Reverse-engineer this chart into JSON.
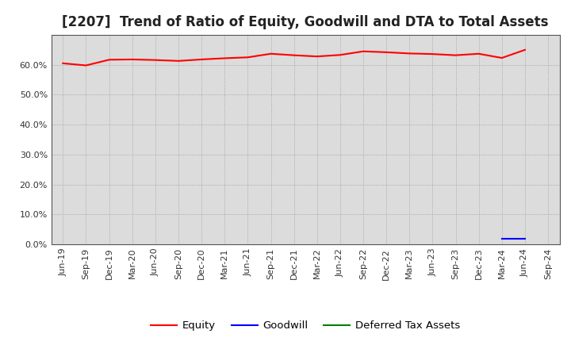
{
  "title": "[2207]  Trend of Ratio of Equity, Goodwill and DTA to Total Assets",
  "labels": [
    "Jun-19",
    "Sep-19",
    "Dec-19",
    "Mar-20",
    "Jun-20",
    "Sep-20",
    "Dec-20",
    "Mar-21",
    "Jun-21",
    "Sep-21",
    "Dec-21",
    "Mar-22",
    "Jun-22",
    "Sep-22",
    "Dec-22",
    "Mar-23",
    "Jun-23",
    "Sep-23",
    "Dec-23",
    "Mar-24",
    "Jun-24",
    "Sep-24"
  ],
  "equity": [
    60.5,
    59.8,
    61.7,
    61.8,
    61.6,
    61.3,
    61.8,
    62.2,
    62.5,
    63.7,
    63.2,
    62.8,
    63.3,
    64.5,
    64.2,
    63.8,
    63.6,
    63.2,
    63.7,
    62.3,
    65.0,
    null
  ],
  "goodwill": [
    null,
    null,
    null,
    null,
    null,
    null,
    null,
    null,
    null,
    null,
    null,
    null,
    null,
    null,
    null,
    null,
    null,
    null,
    null,
    1.8,
    1.8,
    null
  ],
  "dta": [
    null,
    null,
    null,
    null,
    null,
    null,
    null,
    null,
    null,
    null,
    null,
    null,
    null,
    null,
    null,
    null,
    null,
    null,
    null,
    null,
    null,
    null
  ],
  "equity_color": "#ff0000",
  "goodwill_color": "#0000ff",
  "dta_color": "#008000",
  "background_color": "#ffffff",
  "plot_bg_color": "#dcdcdc",
  "grid_color": "#aaaaaa",
  "ylim": [
    0,
    70
  ],
  "yticks": [
    0,
    10,
    20,
    30,
    40,
    50,
    60
  ],
  "ytick_labels": [
    "0.0%",
    "10.0%",
    "20.0%",
    "30.0%",
    "40.0%",
    "50.0%",
    "60.0%"
  ],
  "legend_equity": "Equity",
  "legend_goodwill": "Goodwill",
  "legend_dta": "Deferred Tax Assets",
  "title_fontsize": 12,
  "tick_fontsize": 8,
  "legend_fontsize": 9.5
}
